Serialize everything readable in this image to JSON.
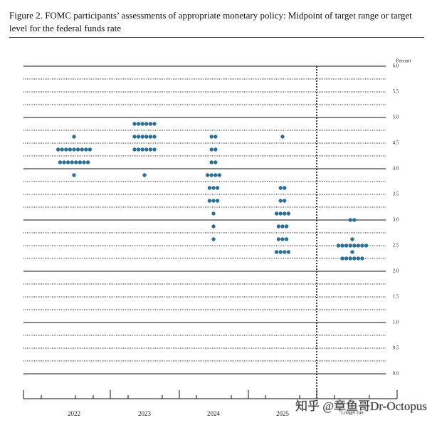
{
  "chart_data": {
    "type": "dot",
    "title": "Figure 2.  FOMC participants’ assessments of appropriate monetary policy:  Midpoint of target range or target level for the federal funds rate",
    "y_axis_label": "Percent",
    "categories": [
      "2022",
      "2023",
      "2024",
      "2025",
      "Longer run"
    ],
    "values": [
      [
        4.625,
        4.375,
        4.375,
        4.375,
        4.375,
        4.375,
        4.375,
        4.375,
        4.375,
        4.375,
        4.125,
        4.125,
        4.125,
        4.125,
        4.125,
        4.125,
        4.125,
        4.125,
        3.875
      ],
      [
        4.875,
        4.875,
        4.875,
        4.875,
        4.875,
        4.875,
        4.625,
        4.625,
        4.625,
        4.625,
        4.625,
        4.625,
        4.375,
        4.375,
        4.375,
        4.375,
        4.375,
        4.375,
        3.875
      ],
      [
        4.625,
        4.625,
        4.375,
        4.375,
        4.125,
        4.125,
        3.875,
        3.875,
        3.875,
        3.875,
        3.625,
        3.625,
        3.625,
        3.375,
        3.375,
        3.375,
        3.125,
        2.875,
        2.625
      ],
      [
        4.625,
        3.625,
        3.625,
        3.375,
        3.375,
        3.125,
        3.125,
        3.125,
        3.125,
        2.875,
        2.875,
        2.875,
        2.625,
        2.625,
        2.625,
        2.375,
        2.375,
        2.375,
        2.375
      ],
      [
        3.0,
        3.0,
        2.625,
        2.5,
        2.5,
        2.5,
        2.5,
        2.5,
        2.5,
        2.5,
        2.5,
        2.375,
        2.25,
        2.25,
        2.25,
        2.25,
        2.25,
        2.25
      ]
    ],
    "color": "#2e6f96",
    "ylim": [
      0,
      6
    ],
    "yticks": [
      {
        "value": 0,
        "label": "0.0"
      },
      0.5,
      {
        "value": 1,
        "label": "1.0"
      },
      1.5,
      {
        "value": 2,
        "label": "2.0"
      },
      2.5,
      {
        "value": 3,
        "label": "3.0"
      },
      3.5,
      {
        "value": 4,
        "label": "4.0"
      },
      4.5,
      {
        "value": 5,
        "label": "5.0"
      },
      5.5,
      {
        "value": 6,
        "label": "6.0"
      }
    ],
    "yticks_minor": [
      0.25,
      0.75,
      1.25,
      1.75,
      2.25,
      2.75,
      3.25,
      3.75,
      4.25,
      4.75,
      5.25,
      5.75
    ],
    "watermark": "知乎 @章鱼哥Dr-Octopus"
  }
}
